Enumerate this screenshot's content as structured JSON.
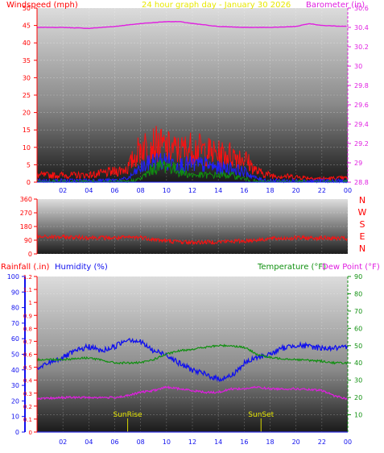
{
  "chart_data": [
    {
      "type": "line",
      "title": "24 hour graph day - January 30 2026",
      "left_axis_label": "Windspeed (mph)",
      "right_axis_label": "Barometer (in)",
      "left_ylim": [
        0,
        50
      ],
      "left_ticks": [
        "0",
        "5",
        "10",
        "15",
        "20",
        "25",
        "30",
        "35",
        "40",
        "45",
        "50"
      ],
      "right_ylim": [
        28.8,
        30.6
      ],
      "right_ticks": [
        "28.8",
        "29",
        "29.2",
        "29.4",
        "29.6",
        "29.8",
        "30",
        "30.2",
        "30.4",
        "30.6"
      ],
      "x_ticks": [
        "02",
        "04",
        "06",
        "08",
        "10",
        "12",
        "14",
        "16",
        "18",
        "20",
        "22",
        "00"
      ],
      "series": [
        {
          "axis": "right",
          "color": "#e01ee0",
          "x": [
            0,
            2,
            4,
            6,
            8,
            9,
            10,
            11,
            12,
            14,
            16,
            18,
            20,
            21,
            22,
            24
          ],
          "y": [
            30.4,
            30.4,
            30.39,
            30.41,
            30.44,
            30.45,
            30.46,
            30.46,
            30.44,
            30.41,
            30.4,
            30.4,
            30.41,
            30.44,
            30.42,
            30.41
          ]
        },
        {
          "axis": "left",
          "color": "#ff1010",
          "x": [
            0,
            2,
            4,
            6,
            7,
            8,
            9,
            10,
            11,
            12,
            13,
            14,
            15,
            16,
            17,
            18,
            20,
            22,
            24
          ],
          "y": [
            2,
            2,
            2,
            3,
            4,
            10,
            11,
            10,
            9,
            10,
            9,
            8,
            8,
            7,
            3,
            2,
            1.5,
            1,
            1.2
          ]
        },
        {
          "axis": "left",
          "color": "#2020ff",
          "x": [
            0,
            6,
            7,
            8,
            9,
            10,
            11,
            12,
            13,
            14,
            15,
            16,
            17,
            18,
            24
          ],
          "y": [
            0.4,
            0.5,
            1,
            4,
            6,
            6,
            5,
            5,
            5,
            4,
            4,
            3,
            1,
            0.4,
            0.3
          ]
        },
        {
          "axis": "left",
          "color": "#109010",
          "x": [
            0,
            7,
            8,
            9,
            10,
            11,
            12,
            13,
            14,
            15,
            16,
            17,
            24
          ],
          "y": [
            0,
            0,
            1,
            4,
            5,
            3,
            2,
            2,
            2,
            2,
            1,
            0,
            0
          ]
        }
      ]
    },
    {
      "type": "line",
      "ylim": [
        0,
        360
      ],
      "y_ticks": [
        "0",
        "90",
        "180",
        "270",
        "360"
      ],
      "direction_labels": [
        "N",
        "W",
        "S",
        "E",
        "N"
      ],
      "series": [
        {
          "color": "#ff1010",
          "x": [
            0,
            2,
            4,
            6,
            8,
            9,
            10,
            12,
            14,
            16,
            18,
            20,
            22,
            24
          ],
          "y": [
            112,
            110,
            108,
            105,
            110,
            95,
            85,
            75,
            80,
            85,
            100,
            105,
            105,
            100
          ]
        }
      ]
    },
    {
      "type": "line",
      "left_axis_label_1": "Rainfall (.in)",
      "left_axis_label_2": "Humidity (%)",
      "right_axis_label_1": "Temperature (°F)",
      "right_axis_label_2": "Dew Point (°F)",
      "rain_ylim": [
        0,
        1.2
      ],
      "rain_ticks": [
        "0",
        "0.1",
        "0.2",
        "0.3",
        "0.4",
        "0.5",
        "0.6",
        "0.7",
        "0.8",
        "0.9",
        "1",
        "1.1",
        "1.2"
      ],
      "humidity_ylim": [
        0,
        100
      ],
      "humidity_ticks": [
        "0",
        "10",
        "20",
        "30",
        "40",
        "50",
        "60",
        "70",
        "80",
        "90",
        "100"
      ],
      "temp_ylim": [
        0,
        90
      ],
      "temp_ticks": [
        "10",
        "20",
        "30",
        "40",
        "50",
        "60",
        "70",
        "80",
        "90"
      ],
      "x_ticks": [
        "02",
        "04",
        "06",
        "08",
        "10",
        "12",
        "14",
        "16",
        "18",
        "20",
        "22",
        "00"
      ],
      "annotations": [
        {
          "label": "SunRise",
          "x": 7.0
        },
        {
          "label": "SunSet",
          "x": 17.3
        }
      ],
      "series": [
        {
          "name": "Humidity (%)",
          "axis": "humidity",
          "color": "#1010ee",
          "x": [
            0,
            1,
            2,
            3,
            4,
            5,
            6,
            7,
            8,
            9,
            10,
            11,
            12,
            13,
            14,
            15,
            16,
            17,
            18,
            19,
            20,
            21,
            22,
            23,
            24
          ],
          "y": [
            40,
            45,
            48,
            52,
            55,
            52,
            55,
            60,
            58,
            52,
            50,
            44,
            40,
            37,
            34,
            36,
            44,
            48,
            50,
            54,
            56,
            55,
            54,
            54,
            54
          ]
        },
        {
          "name": "Temperature (°F)",
          "axis": "temp",
          "color": "#109010",
          "x": [
            0,
            2,
            4,
            6,
            7,
            8,
            9,
            10,
            11,
            12,
            13,
            14,
            15,
            16,
            17,
            18,
            20,
            22,
            23,
            24
          ],
          "y": [
            42,
            42,
            43,
            40,
            40,
            40,
            42,
            45,
            47,
            48,
            49,
            50,
            50,
            49,
            45,
            43,
            42,
            41,
            40,
            40
          ]
        },
        {
          "name": "Dew Point (°F)",
          "axis": "temp",
          "color": "#e01ee0",
          "x": [
            0,
            2,
            4,
            6,
            7,
            8,
            9,
            10,
            11,
            12,
            13,
            14,
            15,
            16,
            17,
            18,
            20,
            22,
            23,
            24
          ],
          "y": [
            19,
            20,
            20,
            20,
            21,
            23,
            24,
            26,
            25,
            24,
            23,
            23,
            25,
            25,
            26,
            25,
            25,
            24,
            21,
            19
          ]
        },
        {
          "name": "Rainfall (.in)",
          "axis": "rain",
          "color": "#606060",
          "x": [
            0,
            24
          ],
          "y": [
            0,
            0
          ]
        }
      ]
    }
  ]
}
